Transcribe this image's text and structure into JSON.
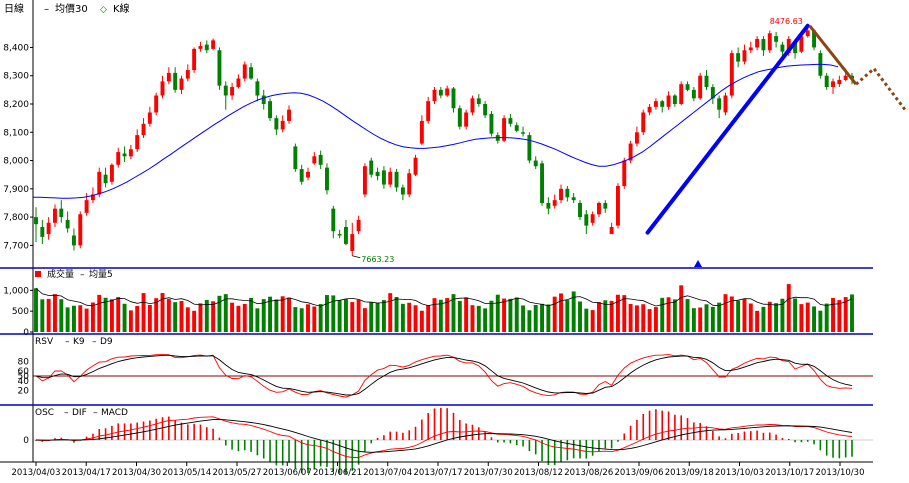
{
  "colors": {
    "up": "#ff0000",
    "down": "#008000",
    "ma": "#0000ff",
    "trend": "#0000ff",
    "forecast": "#8b4513",
    "separator": "#0000cc",
    "refline": "#8b0000",
    "text": "#000000"
  },
  "chart_data": [
    {
      "type": "candlestick",
      "legend": [
        "日線",
        "均價30",
        "K線"
      ],
      "ylim": [
        7620,
        8490
      ],
      "yticks": [
        7700,
        7800,
        7900,
        8000,
        8100,
        8200,
        8300,
        8400
      ],
      "annotations": {
        "high_label": "8476.63",
        "low_label": "7663.23",
        "high_value": 8476.63,
        "low_value": 7663.23
      },
      "candles": [
        [
          7800,
          7775,
          7835,
          7712
        ],
        [
          7765,
          7730,
          7790,
          7705
        ],
        [
          7740,
          7780,
          7800,
          7720
        ],
        [
          7780,
          7830,
          7845,
          7765
        ],
        [
          7830,
          7800,
          7860,
          7780
        ],
        [
          7790,
          7760,
          7820,
          7745
        ],
        [
          7735,
          7700,
          7760,
          7682
        ],
        [
          7700,
          7810,
          7820,
          7690
        ],
        [
          7815,
          7860,
          7885,
          7805
        ],
        [
          7860,
          7880,
          7905,
          7850
        ],
        [
          7880,
          7960,
          7975,
          7870
        ],
        [
          7950,
          7920,
          7975,
          7905
        ],
        [
          7925,
          7985,
          7990,
          7915
        ],
        [
          7985,
          8030,
          8045,
          7975
        ],
        [
          8025,
          8015,
          8050,
          7995
        ],
        [
          8015,
          8040,
          8055,
          8005
        ],
        [
          8040,
          8090,
          8110,
          8030
        ],
        [
          8090,
          8130,
          8150,
          8080
        ],
        [
          8130,
          8170,
          8190,
          8120
        ],
        [
          8170,
          8230,
          8240,
          8160
        ],
        [
          8230,
          8280,
          8300,
          8220
        ],
        [
          8280,
          8310,
          8330,
          8270
        ],
        [
          8310,
          8250,
          8330,
          8240
        ],
        [
          8250,
          8290,
          8300,
          8235
        ],
        [
          8290,
          8320,
          8340,
          8280
        ],
        [
          8320,
          8395,
          8400,
          8310
        ],
        [
          8395,
          8405,
          8420,
          8385
        ],
        [
          8410,
          8390,
          8425,
          8380
        ],
        [
          8395,
          8425,
          8432,
          8390
        ],
        [
          8390,
          8265,
          8400,
          8250
        ],
        [
          8265,
          8230,
          8280,
          8180
        ],
        [
          8230,
          8260,
          8275,
          8215
        ],
        [
          8260,
          8290,
          8305,
          8255
        ],
        [
          8290,
          8340,
          8350,
          8280
        ],
        [
          8330,
          8290,
          8345,
          8285
        ],
        [
          8280,
          8230,
          8290,
          8210
        ],
        [
          8230,
          8200,
          8250,
          8180
        ],
        [
          8210,
          8150,
          8220,
          8140
        ],
        [
          8150,
          8110,
          8160,
          8090
        ],
        [
          8110,
          8140,
          8160,
          8100
        ],
        [
          8140,
          8180,
          8195,
          8130
        ],
        [
          8050,
          7970,
          8060,
          7960
        ],
        [
          7970,
          7925,
          7985,
          7915
        ],
        [
          7940,
          7960,
          7975,
          7930
        ],
        [
          7990,
          8015,
          8030,
          7985
        ],
        [
          8020,
          7985,
          8035,
          7970
        ],
        [
          7975,
          7895,
          7990,
          7880
        ],
        [
          7830,
          7750,
          7840,
          7725
        ],
        [
          7740,
          7735,
          7755,
          7725
        ],
        [
          7765,
          7705,
          7790,
          7700
        ],
        [
          7680,
          7740,
          7780,
          7663
        ],
        [
          7750,
          7790,
          7805,
          7740
        ],
        [
          7880,
          7980,
          7990,
          7870
        ],
        [
          8000,
          7950,
          8010,
          7940
        ],
        [
          7960,
          7945,
          7975,
          7930
        ],
        [
          7965,
          7915,
          7980,
          7900
        ],
        [
          7915,
          7960,
          7975,
          7905
        ],
        [
          7960,
          7905,
          7970,
          7890
        ],
        [
          7905,
          7880,
          7915,
          7860
        ],
        [
          7880,
          7955,
          7970,
          7870
        ],
        [
          7950,
          8010,
          8020,
          7945
        ],
        [
          8060,
          8140,
          8160,
          8055
        ],
        [
          8140,
          8210,
          8225,
          8130
        ],
        [
          8210,
          8250,
          8260,
          8200
        ],
        [
          8250,
          8230,
          8260,
          8220
        ],
        [
          8230,
          8255,
          8265,
          8225
        ],
        [
          8255,
          8185,
          8260,
          8170
        ],
        [
          8185,
          8120,
          8195,
          8110
        ],
        [
          8120,
          8170,
          8180,
          8110
        ],
        [
          8170,
          8220,
          8230,
          8160
        ],
        [
          8220,
          8200,
          8235,
          8190
        ],
        [
          8200,
          8160,
          8210,
          8150
        ],
        [
          8165,
          8095,
          8175,
          8085
        ],
        [
          8090,
          8070,
          8100,
          8060
        ],
        [
          8070,
          8150,
          8160,
          8065
        ],
        [
          8150,
          8130,
          8165,
          8120
        ],
        [
          8125,
          8105,
          8135,
          8100
        ],
        [
          8100,
          8095,
          8120,
          8085
        ],
        [
          8090,
          8000,
          8100,
          7990
        ],
        [
          8000,
          7980,
          8015,
          7970
        ],
        [
          7990,
          7850,
          8000,
          7840
        ],
        [
          7850,
          7830,
          7870,
          7810
        ],
        [
          7840,
          7860,
          7880,
          7830
        ],
        [
          7860,
          7900,
          7915,
          7850
        ],
        [
          7900,
          7870,
          7910,
          7855
        ],
        [
          7870,
          7860,
          7885,
          7850
        ],
        [
          7850,
          7800,
          7860,
          7790
        ],
        [
          7810,
          7770,
          7825,
          7740
        ],
        [
          7780,
          7810,
          7820,
          7770
        ],
        [
          7810,
          7850,
          7855,
          7800
        ],
        [
          7850,
          7830,
          7860,
          7815
        ],
        [
          7740,
          7765,
          7780,
          7745
        ],
        [
          7770,
          7910,
          7920,
          7760
        ],
        [
          7910,
          8000,
          8010,
          7900
        ],
        [
          8000,
          8060,
          8070,
          7990
        ],
        [
          8060,
          8100,
          8120,
          8050
        ],
        [
          8100,
          8170,
          8180,
          8090
        ],
        [
          8170,
          8190,
          8200,
          8160
        ],
        [
          8190,
          8210,
          8220,
          8180
        ],
        [
          8210,
          8190,
          8215,
          8170
        ],
        [
          8190,
          8230,
          8245,
          8180
        ],
        [
          8230,
          8200,
          8235,
          8190
        ],
        [
          8200,
          8270,
          8280,
          8195
        ],
        [
          8270,
          8250,
          8280,
          8245
        ],
        [
          8250,
          8220,
          8260,
          8210
        ],
        [
          8220,
          8300,
          8310,
          8215
        ],
        [
          8300,
          8260,
          8320,
          8250
        ],
        [
          8260,
          8220,
          8270,
          8200
        ],
        [
          8220,
          8180,
          8230,
          8150
        ],
        [
          8170,
          8230,
          8240,
          8160
        ],
        [
          8230,
          8380,
          8390,
          8220
        ],
        [
          8380,
          8350,
          8400,
          8330
        ],
        [
          8350,
          8390,
          8410,
          8340
        ],
        [
          8390,
          8400,
          8420,
          8380
        ],
        [
          8400,
          8430,
          8440,
          8390
        ],
        [
          8430,
          8390,
          8440,
          8370
        ],
        [
          8390,
          8450,
          8460,
          8380
        ],
        [
          8440,
          8420,
          8455,
          8400
        ],
        [
          8410,
          8385,
          8420,
          8360
        ],
        [
          8380,
          8430,
          8440,
          8370
        ],
        [
          8420,
          8380,
          8430,
          8360
        ],
        [
          8385,
          8440,
          8450,
          8380
        ],
        [
          8440,
          8460,
          8476.63,
          8435
        ],
        [
          8460,
          8400,
          8465,
          8390
        ],
        [
          8380,
          8300,
          8390,
          8290
        ],
        [
          8300,
          8260,
          8310,
          8250
        ],
        [
          8260,
          8280,
          8290,
          8235
        ],
        [
          8270,
          8285,
          8300,
          8260
        ],
        [
          8285,
          8300,
          8325,
          8280
        ],
        [
          8300,
          8290,
          8310,
          8270
        ]
      ],
      "ma": [
        7870,
        7870,
        7869,
        7868,
        7867,
        7867,
        7868,
        7870,
        7875,
        7882,
        7890,
        7900,
        7912,
        7925,
        7940,
        7955,
        7970,
        7987,
        8005,
        8022,
        8040,
        8058,
        8075,
        8093,
        8110,
        8127,
        8143,
        8160,
        8175,
        8190,
        8203,
        8214,
        8223,
        8230,
        8235,
        8238,
        8240,
        8238,
        8232,
        8222,
        8210,
        8195,
        8178,
        8160,
        8142,
        8125,
        8108,
        8092,
        8078,
        8066,
        8056,
        8049,
        8045,
        8043,
        8043,
        8045,
        8048,
        8052,
        8057,
        8063,
        8070,
        8075,
        8078,
        8080,
        8081,
        8081,
        8080,
        8078,
        8074,
        8068,
        8060,
        8050,
        8040,
        8028,
        8016,
        8005,
        7995,
        7986,
        7980,
        7980,
        7985,
        7993,
        8003,
        8015,
        8030,
        8048,
        8068,
        8088,
        8108,
        8128,
        8148,
        8168,
        8188,
        8208,
        8228,
        8248,
        8265,
        8280,
        8293,
        8304,
        8314,
        8320,
        8325,
        8330,
        8334,
        8336,
        8338,
        8339,
        8340,
        8340,
        8338,
        8332
      ],
      "trend_start": [
        7745,
        1
      ],
      "trend_end": [
        8476.63,
        1
      ],
      "forecast_points": [
        [
          8270,
          0
        ],
        [
          8325,
          0.1
        ],
        [
          8180,
          0.25
        ]
      ],
      "marker": "triangle"
    },
    {
      "type": "bar",
      "legend": [
        "成交量",
        "均量5"
      ],
      "ylim": [
        0,
        1200
      ],
      "yticks": [
        0,
        500,
        1000
      ],
      "ytick_labels": [
        "0",
        "500",
        "1,000"
      ]
    },
    {
      "type": "line",
      "legend": [
        "RSV",
        "K9",
        "D9"
      ],
      "ylim": [
        0,
        100
      ],
      "yticks": [
        20,
        40,
        50,
        60,
        80
      ],
      "reference_line": 50
    },
    {
      "type": "bar",
      "legend": [
        "OSC",
        "DIF",
        "MACD"
      ],
      "yticks": [
        0
      ],
      "xticks": [
        "2013/04/03",
        "2013/04/17",
        "2013/04/30",
        "2013/05/14",
        "2013/05/27",
        "2013/06/07",
        "2013/06/21",
        "2013/07/04",
        "2013/07/17",
        "2013/07/30",
        "2013/08/12",
        "2013/08/26",
        "2013/09/06",
        "2013/09/18",
        "2013/10/03",
        "2013/10/17",
        "2013/10/30"
      ]
    }
  ]
}
